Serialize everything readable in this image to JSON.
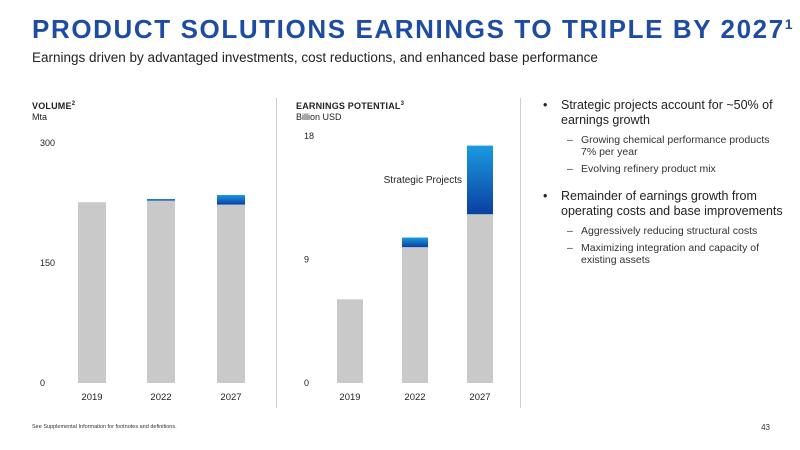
{
  "title": "PRODUCT SOLUTIONS EARNINGS TO TRIPLE BY 2027",
  "title_sup": "1",
  "subtitle": "Earnings driven by advantaged investments, cost reductions, and enhanced base performance",
  "colors": {
    "accent": "#1f4ca3",
    "bar_gray": "#c9c9c9",
    "blue_light": "#1a9be0",
    "blue_dark": "#0b3fa1"
  },
  "chart_data": [
    {
      "type": "bar",
      "title": "VOLUME",
      "title_sup": "2",
      "unit": "Mta",
      "categories": [
        "2019",
        "2022",
        "2027"
      ],
      "series": [
        {
          "values": [
            226,
            228,
            223
          ]
        },
        {
          "values": [
            0,
            2,
            12
          ]
        }
      ],
      "ylim": [
        0,
        300
      ],
      "yticks": [
        0,
        150,
        300
      ],
      "grid": false
    },
    {
      "type": "bar",
      "title": "EARNINGS POTENTIAL",
      "title_sup": "3",
      "unit": "Billion USD",
      "categories": [
        "2019",
        "2022",
        "2027"
      ],
      "series": [
        {
          "values": [
            6.1,
            9.9,
            12.3
          ]
        },
        {
          "name": "Strategic Projects",
          "values": [
            0,
            0.7,
            5
          ]
        }
      ],
      "ylim": [
        0,
        18
      ],
      "yticks": [
        0,
        9,
        18
      ],
      "grid": false
    }
  ],
  "bullets": [
    {
      "text": "Strategic projects account for ~50% of earnings growth",
      "sub": [
        "Growing chemical performance products 7% per year",
        "Evolving refinery product mix"
      ]
    },
    {
      "text": "Remainder of earnings growth from operating costs and base improvements",
      "sub": [
        "Aggressively reducing structural costs",
        "Maximizing integration and capacity of existing assets"
      ]
    }
  ],
  "footnote": "See Supplemental Information for footnotes and definitions.",
  "page_number": "43"
}
